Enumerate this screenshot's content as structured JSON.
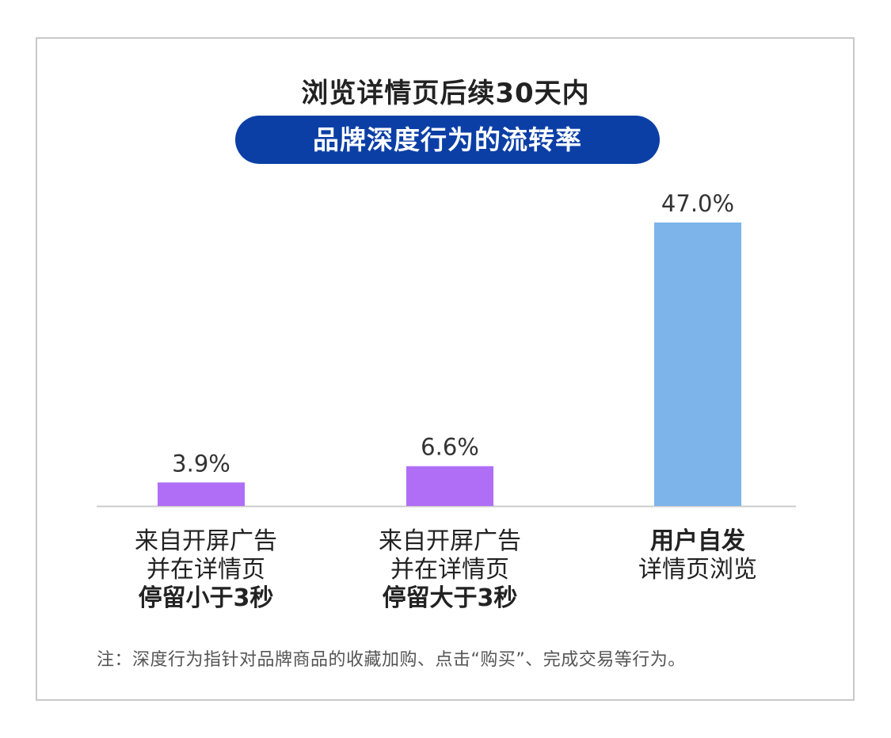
{
  "header": {
    "title": "浏览详情页后续30天内",
    "subtitle": "品牌深度行为的流转率"
  },
  "colors": {
    "pill_background": "#0b3fa6",
    "bar_purple": "#b06ef7",
    "bar_blue": "#7db5ea",
    "axis": "#cccccc"
  },
  "chart_data": {
    "type": "bar",
    "categories": [
      [
        "来自开屏广告",
        "并在详情页",
        "停留小于3秒"
      ],
      [
        "来自开屏广告",
        "并在详情页",
        "停留大于3秒"
      ],
      [
        "用户自发",
        "详情页浏览"
      ]
    ],
    "values": [
      3.9,
      6.6,
      47.0
    ],
    "value_labels": [
      "3.9%",
      "6.6%",
      "47.0%"
    ],
    "bar_colors": [
      "#b06ef7",
      "#b06ef7",
      "#7db5ea"
    ],
    "ylim": [
      0,
      47.0
    ],
    "grid": false,
    "legend": "none"
  },
  "labels": {
    "cat1": {
      "line1": "来自开屏广告",
      "line2": "并在详情页",
      "line3": "停留小于3秒"
    },
    "cat2": {
      "line1": "来自开屏广告",
      "line2": "并在详情页",
      "line3": "停留大于3秒"
    },
    "cat3": {
      "line1": "用户自发",
      "line2": "详情页浏览"
    }
  },
  "footnote": "注：深度行为指针对品牌商品的收藏加购、点击“购买”、完成交易等行为。"
}
